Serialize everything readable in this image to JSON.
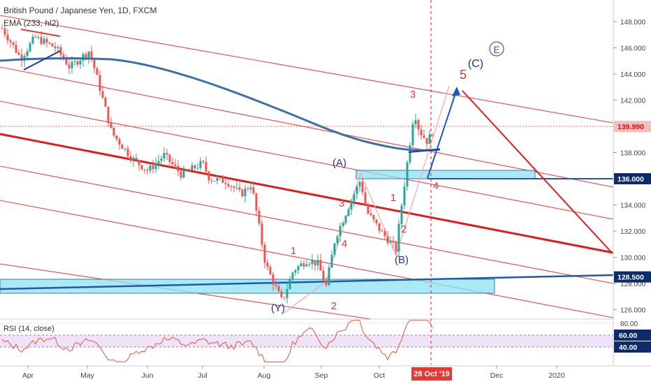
{
  "header": {
    "symbol": "British Pound / Japanese Yen, 1D, FXCM",
    "ema": "EMA (233, hl2)",
    "rsi": "RSI (14, close)"
  },
  "price_badges": [
    {
      "label": "139.990",
      "value": 139.99,
      "color": "#f0c0c0",
      "text": "#ff0000"
    },
    {
      "label": "136.000",
      "value": 136.0,
      "color": "#0d2b6b",
      "text": "#ffffff"
    },
    {
      "label": "128.500",
      "value": 128.5,
      "color": "#0d2b6b",
      "text": "#ffffff"
    }
  ],
  "rsi_badges": [
    {
      "label": "60.00",
      "value": 60,
      "color": "#0d2b6b"
    },
    {
      "label": "40.00",
      "value": 40,
      "color": "#0d2b6b"
    }
  ],
  "date_badge": "28 Oct '19",
  "chart_data": {
    "type": "line",
    "price_axis": {
      "ticks": [
        "148.000",
        "146.000",
        "144.000",
        "142.000",
        "140.000",
        "138.000",
        "134.000",
        "132.000",
        "130.000",
        "128.000",
        "126.000"
      ],
      "range": [
        125.5,
        149.0
      ]
    },
    "rsi_axis": {
      "ticks": [
        "80.00"
      ],
      "range": [
        0,
        100
      ]
    },
    "x_ticks": [
      "Apr",
      "May",
      "Jun",
      "Jul",
      "Aug",
      "Sep",
      "Oct",
      "Dec",
      "2020"
    ],
    "wave_labels": [
      {
        "text": "1",
        "color": "#e53935"
      },
      {
        "text": "2",
        "color": "#e53935"
      },
      {
        "text": "3",
        "color": "#e53935"
      },
      {
        "text": "4",
        "color": "#e53935"
      },
      {
        "text": "(A)",
        "color": "#1a3a7a"
      },
      {
        "text": "1",
        "color": "#e53935"
      },
      {
        "text": "2",
        "color": "#e53935"
      },
      {
        "text": "(B)",
        "color": "#1a3a7a"
      },
      {
        "text": "3",
        "color": "#e53935"
      },
      {
        "text": "4",
        "color": "#e53935"
      },
      {
        "text": "5",
        "color": "#e53935"
      },
      {
        "text": "(C)",
        "color": "#1a3a7a"
      },
      {
        "text": "(Y)",
        "color": "#1a3a7a"
      },
      {
        "text": "E",
        "color": "#7b3fa0"
      }
    ],
    "ema_name": "EMA (233, hl2)",
    "rsi_name": "RSI (14, close)"
  }
}
